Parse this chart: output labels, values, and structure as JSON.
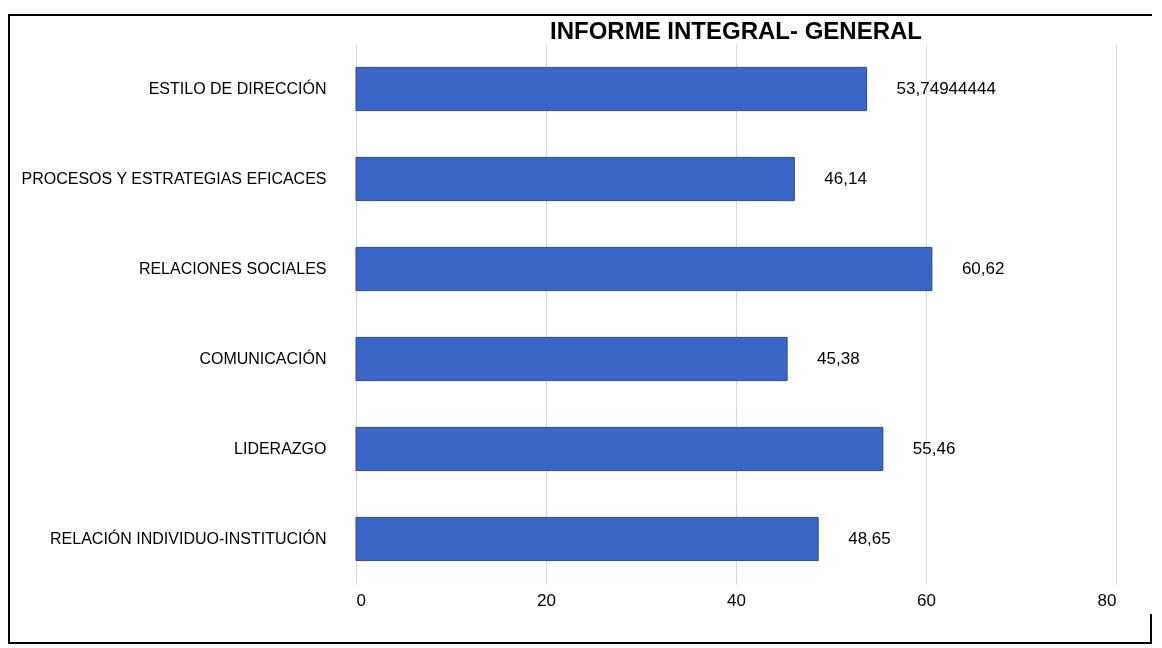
{
  "chart_data": {
    "type": "bar",
    "orientation": "horizontal",
    "title": "INFORME INTEGRAL- GENERAL",
    "categories": [
      "ESTILO DE DIRECCIÓN",
      "PROCESOS Y ESTRATEGIAS EFICACES",
      "RELACIONES SOCIALES",
      "COMUNICACIÓN",
      "LIDERAZGO",
      "RELACIÓN INDIVIDUO-INSTITUCIÓN"
    ],
    "values": [
      53.74944444,
      46.14,
      60.62,
      45.38,
      55.46,
      48.65
    ],
    "value_labels": [
      "53,74944444",
      "46,14",
      "60,62",
      "45,38",
      "55,46",
      "48,65"
    ],
    "color": "#3a66c8",
    "xlim": [
      0,
      80
    ],
    "xticks": [
      0,
      20,
      40,
      60,
      80
    ],
    "grid": "x"
  }
}
